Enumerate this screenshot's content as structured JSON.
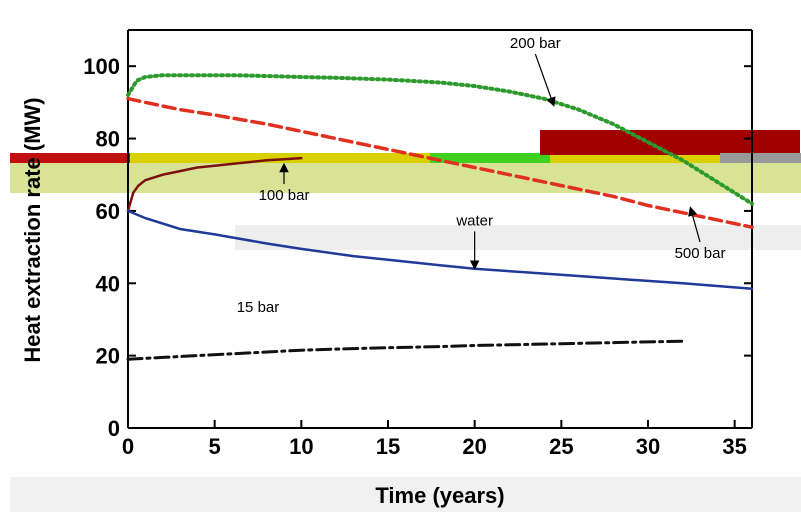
{
  "chart_data": {
    "type": "line",
    "xlabel": "Time (years)",
    "ylabel": "Heat extraction rate (MW)",
    "xlim": [
      0,
      36
    ],
    "ylim": [
      0,
      110
    ],
    "x_ticks": [
      0,
      5,
      10,
      15,
      20,
      25,
      30,
      35
    ],
    "y_ticks": [
      0,
      20,
      40,
      60,
      80,
      100
    ],
    "grid": false,
    "colors": {
      "200 bar": "#2e9a2e",
      "500 bar": "#e03020",
      "100 bar": "#7a1010",
      "water": "#1f3a99",
      "15 bar": "#111111"
    },
    "series": [
      {
        "name": "200 bar",
        "style": "dotted",
        "x": [
          0,
          0.5,
          1,
          2,
          4,
          6,
          8,
          10,
          12,
          15,
          18,
          20,
          22,
          24,
          26,
          28,
          30,
          32,
          34,
          36
        ],
        "y": [
          92,
          96,
          97,
          97.5,
          97.5,
          97.5,
          97.3,
          97,
          96.8,
          96.3,
          95.5,
          94.5,
          93,
          91,
          88,
          84,
          79,
          74,
          68,
          62
        ]
      },
      {
        "name": "500 bar",
        "style": "dashed",
        "x": [
          0,
          1,
          3,
          5,
          8,
          10,
          13,
          15,
          18,
          20,
          22,
          25,
          28,
          30,
          33,
          36
        ],
        "y": [
          91,
          90,
          88,
          86.5,
          84,
          82,
          79,
          77,
          74,
          72,
          70,
          67,
          64,
          61.5,
          58.5,
          55.5
        ]
      },
      {
        "name": "100 bar",
        "style": "solid",
        "x": [
          0,
          0.3,
          0.6,
          1,
          2,
          3,
          4,
          5,
          6,
          7,
          8,
          9,
          10
        ],
        "y": [
          60,
          65,
          67,
          68.5,
          70,
          71,
          72,
          72.5,
          73,
          73.5,
          74,
          74.3,
          74.6
        ]
      },
      {
        "name": "water",
        "style": "solid",
        "x": [
          0,
          1,
          3,
          5,
          8,
          10,
          13,
          15,
          18,
          20,
          23,
          26,
          29,
          32,
          36
        ],
        "y": [
          60,
          58,
          55,
          53.5,
          51,
          49.5,
          47.5,
          46.5,
          45,
          44,
          43,
          42,
          41,
          40,
          38.5
        ]
      },
      {
        "name": "15 bar",
        "style": "dashdot",
        "x": [
          0,
          2,
          4,
          6,
          8,
          10,
          12,
          15,
          18,
          20,
          22,
          25,
          28,
          30,
          32
        ],
        "y": [
          19,
          19.5,
          20,
          20.5,
          21,
          21.5,
          21.8,
          22.2,
          22.5,
          22.8,
          23,
          23.3,
          23.6,
          23.8,
          24
        ]
      }
    ],
    "annotations": [
      {
        "text": "200 bar",
        "x": 23.5,
        "y": 105,
        "arrow_to": [
          24.5,
          90
        ]
      },
      {
        "text": "100 bar",
        "x": 9,
        "y": 63,
        "arrow_to": [
          9,
          72
        ]
      },
      {
        "text": "water",
        "x": 20,
        "y": 56,
        "arrow_to": [
          20,
          45
        ]
      },
      {
        "text": "500 bar",
        "x": 33,
        "y": 47,
        "arrow_to": [
          32.5,
          60
        ]
      },
      {
        "text": "15 bar",
        "x": 7.5,
        "y": 32
      }
    ]
  }
}
